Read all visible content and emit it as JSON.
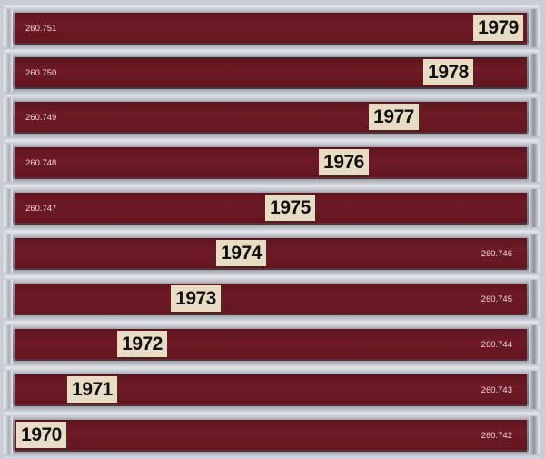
{
  "cds": [
    {
      "year": "1979",
      "catalog": "260.751",
      "catalog_side": "left"
    },
    {
      "year": "1978",
      "catalog": "260.750",
      "catalog_side": "left"
    },
    {
      "year": "1977",
      "catalog": "260.749",
      "catalog_side": "left"
    },
    {
      "year": "1976",
      "catalog": "260.748",
      "catalog_side": "left"
    },
    {
      "year": "1975",
      "catalog": "260.747",
      "catalog_side": "left"
    },
    {
      "year": "1974",
      "catalog": "260.746",
      "catalog_side": "right"
    },
    {
      "year": "1973",
      "catalog": "260.745",
      "catalog_side": "right"
    },
    {
      "year": "1972",
      "catalog": "260.744",
      "catalog_side": "right"
    },
    {
      "year": "1971",
      "catalog": "260.743",
      "catalog_side": "right"
    },
    {
      "year": "1970",
      "catalog": "260.742",
      "catalog_side": "right"
    }
  ],
  "colors": {
    "spine": "#6a1823",
    "label": "#e9dcc4",
    "case": "#8d909a"
  }
}
